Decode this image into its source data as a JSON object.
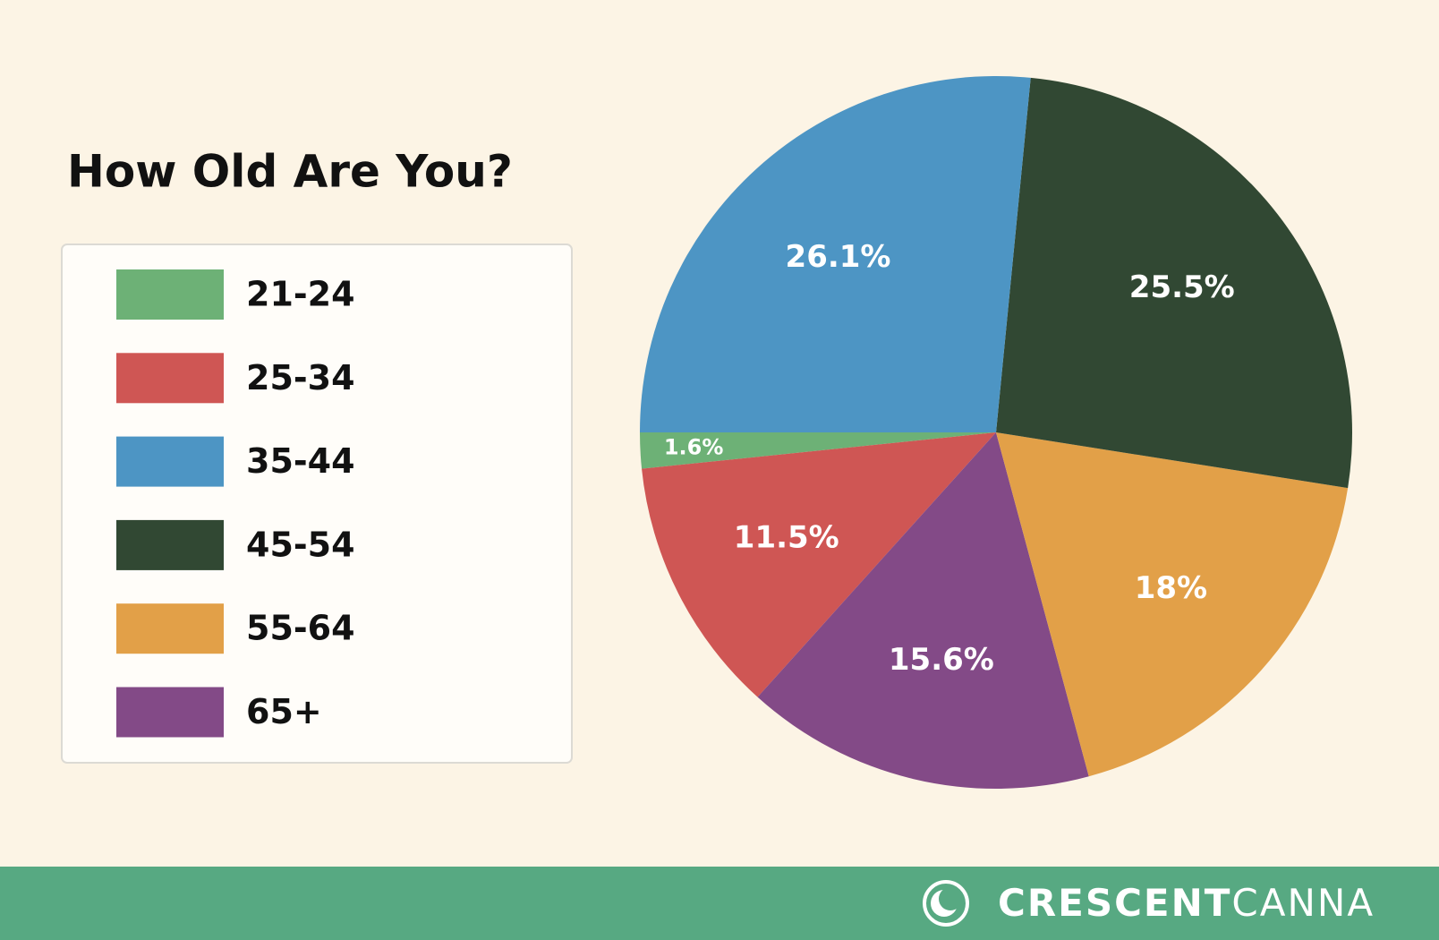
{
  "chart_data": {
    "type": "pie",
    "title": "How Old Are You?",
    "categories": [
      "21-24",
      "25-34",
      "35-44",
      "45-54",
      "55-64",
      "65+"
    ],
    "values": [
      1.6,
      11.5,
      26.1,
      25.5,
      18,
      15.6
    ],
    "value_labels": [
      "1.6%",
      "11.5%",
      "26.1%",
      "25.5%",
      "18%",
      "15.6%"
    ],
    "colors": [
      "#6db176",
      "#cf5654",
      "#4d95c4",
      "#314833",
      "#e2a048",
      "#834a87"
    ]
  },
  "footer": {
    "brand_bold": "CRESCENT",
    "brand_light": "CANNA"
  }
}
